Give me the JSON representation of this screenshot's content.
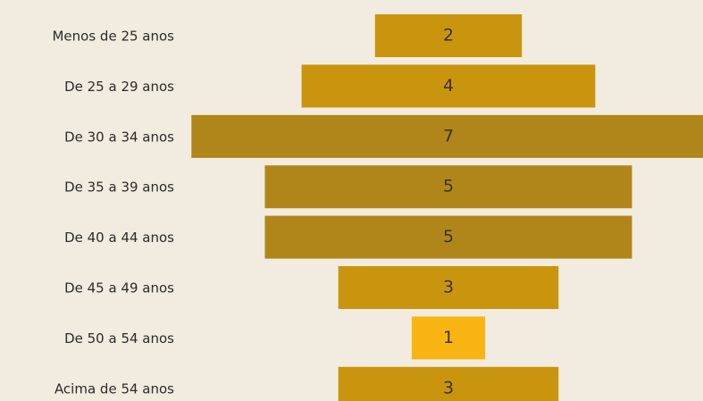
{
  "chart_data": {
    "type": "funnel",
    "categories": [
      "Menos de 25 anos",
      "De 25 a 29 anos",
      "De 30 a 34 anos",
      "De 35 a 39 anos",
      "De 40 a 44 anos",
      "De 45 a 49 anos",
      "De 50 a 54 anos",
      "Acima de 54 anos"
    ],
    "values": [
      2,
      4,
      7,
      5,
      5,
      3,
      1,
      3
    ],
    "colors": [
      "#c9950e",
      "#c9950e",
      "#b0861a",
      "#b0861a",
      "#b0861a",
      "#c9950e",
      "#f8b412",
      "#c9950e"
    ]
  }
}
